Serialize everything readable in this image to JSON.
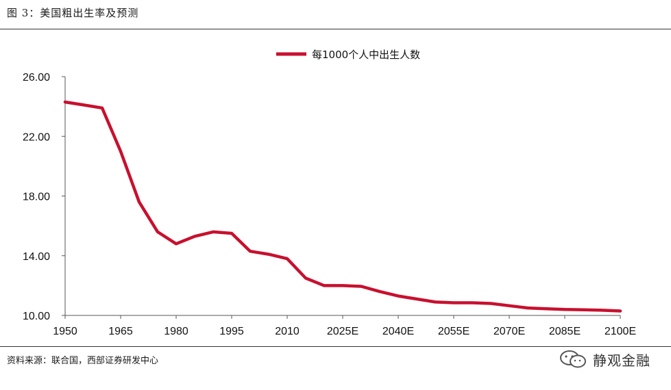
{
  "header": {
    "title": "图 3：美国粗出生率及预测"
  },
  "footer": {
    "source": "资料来源：联合国，西部证券研发中心",
    "watermark": "静观金融"
  },
  "colors": {
    "series": "#c8102e",
    "axis": "#555555",
    "rule": "#333333"
  },
  "chart_data": {
    "type": "line",
    "xlabel": "",
    "ylabel": "",
    "legend_position": "top-center",
    "grid": false,
    "x_ticks": [
      "1950",
      "1965",
      "1980",
      "1995",
      "2010",
      "2025E",
      "2040E",
      "2055E",
      "2070E",
      "2085E",
      "2100E"
    ],
    "y_ticks": [
      "10.00",
      "14.00",
      "18.00",
      "22.00",
      "26.00"
    ],
    "ylim": [
      10,
      26
    ],
    "xlim": [
      1950,
      2100
    ],
    "series": [
      {
        "name": "每1000个人中出生人数",
        "x": [
          1950,
          1955,
          1960,
          1965,
          1970,
          1975,
          1980,
          1985,
          1990,
          1995,
          2000,
          2005,
          2010,
          2015,
          2020,
          2025,
          2030,
          2035,
          2040,
          2045,
          2050,
          2055,
          2060,
          2065,
          2070,
          2075,
          2080,
          2085,
          2090,
          2095,
          2100
        ],
        "values": [
          24.3,
          24.1,
          23.9,
          21.0,
          17.6,
          15.6,
          14.8,
          15.3,
          15.6,
          15.5,
          14.3,
          14.1,
          13.8,
          12.5,
          12.0,
          12.0,
          11.95,
          11.6,
          11.3,
          11.1,
          10.9,
          10.85,
          10.85,
          10.8,
          10.65,
          10.5,
          10.45,
          10.4,
          10.38,
          10.35,
          10.3
        ]
      }
    ]
  }
}
